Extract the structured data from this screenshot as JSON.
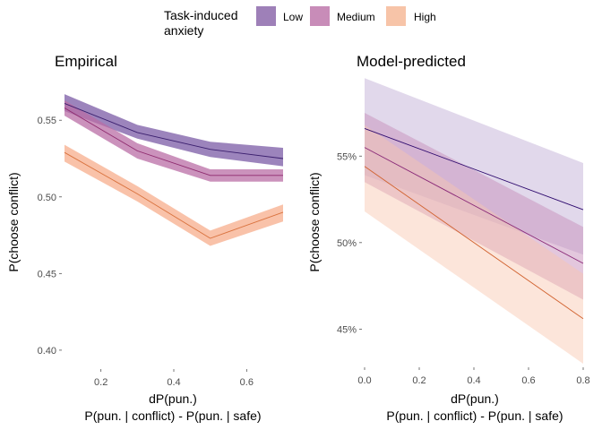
{
  "legend": {
    "title_line1": "Task-induced",
    "title_line2": "anxiety",
    "entries": [
      {
        "label": "Low",
        "color": "#9e80b8"
      },
      {
        "label": "Medium",
        "color": "#c88cb8"
      },
      {
        "label": "High",
        "color": "#f7c4a8"
      }
    ]
  },
  "chart_data": [
    {
      "type": "line",
      "title": "Empirical",
      "xlabel": "dP(pun.)",
      "xlabel2": "P(pun. | conflict) - P(pun. | safe)",
      "ylabel": "P(choose conflict)",
      "xlim": [
        0.1,
        0.7
      ],
      "ylim": [
        0.39,
        0.57
      ],
      "x_ticks": [
        0.2,
        0.4,
        0.6
      ],
      "x_tick_labels": [
        "0.2",
        "0.4",
        "0.6"
      ],
      "y_ticks": [
        0.4,
        0.45,
        0.5,
        0.55
      ],
      "y_tick_labels": [
        "0.40",
        "0.45",
        "0.50",
        "0.55"
      ],
      "grid": false,
      "series": [
        {
          "name": "Low",
          "line_color": "#3b1f6e",
          "band_color": "#7b5ba6",
          "band_opacity": 0.75,
          "x": [
            0.1,
            0.3,
            0.5,
            0.7
          ],
          "y": [
            0.561,
            0.542,
            0.531,
            0.525
          ],
          "lower": [
            0.556,
            0.538,
            0.526,
            0.52
          ],
          "upper": [
            0.567,
            0.547,
            0.536,
            0.532
          ]
        },
        {
          "name": "Medium",
          "line_color": "#8e2a6e",
          "band_color": "#b96da6",
          "band_opacity": 0.75,
          "x": [
            0.1,
            0.3,
            0.5,
            0.7
          ],
          "y": [
            0.558,
            0.53,
            0.514,
            0.514
          ],
          "lower": [
            0.553,
            0.525,
            0.51,
            0.51
          ],
          "upper": [
            0.563,
            0.535,
            0.518,
            0.518
          ]
        },
        {
          "name": "High",
          "line_color": "#d9723e",
          "band_color": "#f7b394",
          "band_opacity": 0.8,
          "x": [
            0.1,
            0.3,
            0.5,
            0.7
          ],
          "y": [
            0.529,
            0.502,
            0.473,
            0.49
          ],
          "lower": [
            0.523,
            0.497,
            0.468,
            0.484
          ],
          "upper": [
            0.534,
            0.507,
            0.478,
            0.495
          ]
        }
      ]
    },
    {
      "type": "line",
      "title": "Model-predicted",
      "xlabel": "dP(pun.)",
      "xlabel2": "P(pun. | conflict) - P(pun. | safe)",
      "ylabel": "P(choose conflict)",
      "xlim": [
        0.0,
        0.8
      ],
      "ylim": [
        0.43,
        0.59
      ],
      "x_ticks": [
        0.0,
        0.2,
        0.4,
        0.6,
        0.8
      ],
      "x_tick_labels": [
        "0.0",
        "0.2",
        "0.4",
        "0.6",
        "0.8"
      ],
      "y_ticks": [
        0.45,
        0.5,
        0.55
      ],
      "y_tick_labels": [
        "45%",
        "50%",
        "55%"
      ],
      "grid": false,
      "series": [
        {
          "name": "Low",
          "line_color": "#2e0a6e",
          "band_color": "#c9b8da",
          "band_opacity": 0.55,
          "x": [
            0.0,
            0.8
          ],
          "y": [
            0.566,
            0.519
          ],
          "lower": [
            0.539,
            0.493
          ],
          "upper": [
            0.595,
            0.546
          ]
        },
        {
          "name": "Medium",
          "line_color": "#8a2a78",
          "band_color": "#c890bc",
          "band_opacity": 0.5,
          "x": [
            0.0,
            0.8
          ],
          "y": [
            0.555,
            0.488
          ],
          "lower": [
            0.535,
            0.467
          ],
          "upper": [
            0.575,
            0.509
          ]
        },
        {
          "name": "High",
          "line_color": "#d1622f",
          "band_color": "#f9c6ae",
          "band_opacity": 0.45,
          "x": [
            0.0,
            0.8
          ],
          "y": [
            0.544,
            0.456
          ],
          "lower": [
            0.518,
            0.43
          ],
          "upper": [
            0.568,
            0.482
          ]
        }
      ]
    }
  ]
}
